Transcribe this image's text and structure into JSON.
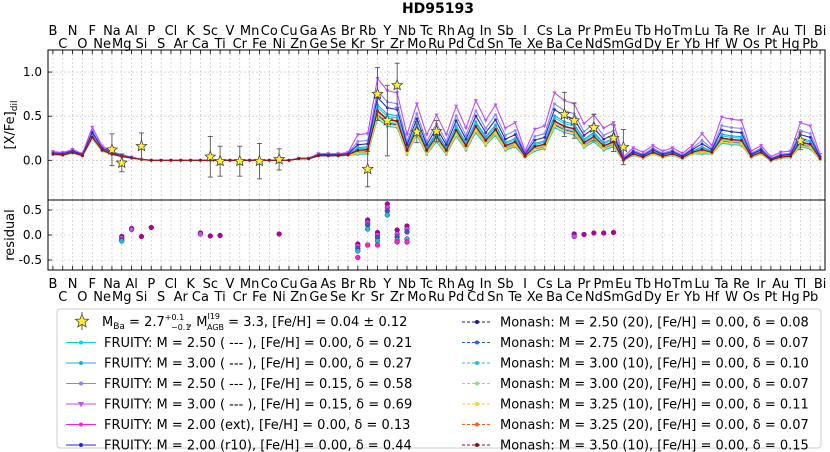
{
  "chart_data": {
    "type": "line",
    "title": "HD95193",
    "top_panel": {
      "ylabel_main": "[X/Fe]",
      "ylabel_sub": "dil",
      "ylim": [
        -0.45,
        1.25
      ],
      "yticks": [
        "0.0",
        "0.5",
        "1.0"
      ],
      "grid": true
    },
    "bottom_panel": {
      "ylabel": "residual",
      "ylim": [
        -0.7,
        0.7
      ],
      "yticks": [
        "-0.5",
        "0.0",
        "0.5"
      ],
      "grid": true
    },
    "x_elements": [
      "B",
      "C",
      "N",
      "O",
      "F",
      "Ne",
      "Na",
      "Mg",
      "Al",
      "Si",
      "P",
      "S",
      "Cl",
      "Ar",
      "K",
      "Ca",
      "Sc",
      "Ti",
      "V",
      "Cr",
      "Mn",
      "Fe",
      "Co",
      "Ni",
      "Cu",
      "Zn",
      "Ga",
      "Ge",
      "As",
      "Se",
      "Br",
      "Kr",
      "Rb",
      "Sr",
      "Y",
      "Zr",
      "Nb",
      "Mo",
      "Tc",
      "Ru",
      "Rh",
      "Pd",
      "Ag",
      "Cd",
      "In",
      "Sn",
      "Sb",
      "Te",
      "I",
      "Xe",
      "Cs",
      "Ba",
      "La",
      "Ce",
      "Pr",
      "Nd",
      "Pm",
      "Sm",
      "Eu",
      "Gd",
      "Tb",
      "Dy",
      "Ho",
      "Er",
      "Tm",
      "Yb",
      "Lu",
      "Hf",
      "Ta",
      "W",
      "Re",
      "Os",
      "Ir",
      "Pt",
      "Au",
      "Hg",
      "Tl",
      "Pb",
      "Bi"
    ],
    "observed": {
      "points": [
        {
          "el": "Na",
          "y": 0.12,
          "err": 0.18
        },
        {
          "el": "Mg",
          "y": -0.03,
          "err": 0.1
        },
        {
          "el": "Si",
          "y": 0.16,
          "err": 0.15
        },
        {
          "el": "Sc",
          "y": 0.04,
          "err": 0.23
        },
        {
          "el": "Ti",
          "y": -0.01,
          "err": 0.17
        },
        {
          "el": "Fe",
          "y": -0.01,
          "err": 0.2
        },
        {
          "el": "Cr",
          "y": -0.01,
          "err": 0.17
        },
        {
          "el": "Ni",
          "y": 0.01,
          "err": 0.12
        },
        {
          "el": "Rb",
          "y": -0.1,
          "err": 0.2
        },
        {
          "el": "Sr",
          "y": 0.75,
          "err": 0.3
        },
        {
          "el": "Y",
          "y": 0.45,
          "err": 0.4
        },
        {
          "el": "Zr",
          "y": 0.85,
          "err": 0.25
        },
        {
          "el": "Mo",
          "y": 0.32,
          "err": 0.12
        },
        {
          "el": "Ru",
          "y": 0.33,
          "err": 0.12
        },
        {
          "el": "La",
          "y": 0.52,
          "err": 0.25
        },
        {
          "el": "Ce",
          "y": 0.45,
          "err": 0.2
        },
        {
          "el": "Nd",
          "y": 0.37,
          "err": 0.15
        },
        {
          "el": "Sm",
          "y": 0.25,
          "err": 0.15
        },
        {
          "el": "Eu",
          "y": 0.15,
          "err": 0.2
        },
        {
          "el": "Tl",
          "y": 0.22,
          "err": 0.1
        }
      ]
    },
    "residuals": [
      {
        "el": "Mg",
        "values": [
          -0.03,
          -0.06,
          -0.1,
          -0.12
        ]
      },
      {
        "el": "Al",
        "values": [
          0.13,
          0.11
        ]
      },
      {
        "el": "Si",
        "values": [
          -0.03
        ]
      },
      {
        "el": "P",
        "values": [
          0.15
        ]
      },
      {
        "el": "Ca",
        "values": [
          0.04,
          0.02
        ]
      },
      {
        "el": "Sc",
        "values": [
          -0.02
        ]
      },
      {
        "el": "Ti",
        "values": [
          -0.01
        ]
      },
      {
        "el": "Ni",
        "values": [
          0.02
        ]
      },
      {
        "el": "Kr",
        "values": [
          -0.18,
          -0.22,
          -0.27,
          -0.32,
          -0.45
        ]
      },
      {
        "el": "Rb",
        "values": [
          0.3,
          0.25,
          0.2,
          0.12,
          -0.2
        ]
      },
      {
        "el": "Sr",
        "values": [
          0.05,
          0.0,
          -0.05,
          -0.12,
          -0.2
        ]
      },
      {
        "el": "Y",
        "values": [
          0.62,
          0.55,
          0.48,
          0.4
        ]
      },
      {
        "el": "Zr",
        "values": [
          0.1,
          0.02,
          -0.04,
          -0.1,
          -0.14
        ]
      },
      {
        "el": "Nb",
        "values": [
          0.18,
          0.12,
          0.06,
          -0.08,
          -0.14
        ]
      },
      {
        "el": "Ce",
        "values": [
          0.02,
          -0.03
        ]
      },
      {
        "el": "Pr",
        "values": [
          0.01
        ]
      },
      {
        "el": "Nd",
        "values": [
          0.04
        ]
      },
      {
        "el": "Sm",
        "values": [
          0.05
        ]
      },
      {
        "el": "Pm",
        "values": [
          0.04
        ]
      }
    ],
    "series": [
      {
        "name": "FRUITY:    M = 2.50 ( --- ),  [Fe/H] =  0.00,  δ = 0.21",
        "color": "#00d7ea",
        "marker": "dot",
        "s": 0.92,
        "v": 0.02
      },
      {
        "name": "FRUITY:    M = 3.00 ( --- ),  [Fe/H] =  0.00,  δ = 0.27",
        "color": "#22a8e6",
        "marker": "dot",
        "s": 0.95,
        "v": 0.03
      },
      {
        "name": "FRUITY:    M = 2.50 ( --- ),  [Fe/H] =  0.15,  δ = 0.58",
        "color": "#8484ff",
        "marker": "dot",
        "s": 1.12,
        "v": 0.08
      },
      {
        "name": "FRUITY:    M = 3.00 ( --- ),  [Fe/H] =  0.15,  δ = 0.69",
        "color": "#c04cff",
        "marker": "tri",
        "s": 1.25,
        "v": 0.14
      },
      {
        "name": "FRUITY:    M = 2.00 (ext),  [Fe/H] =  0.00,  δ = 0.13",
        "color": "#ff22cc",
        "marker": "dot",
        "s": 0.88,
        "v": 0.0
      },
      {
        "name": "FRUITY:    M = 2.00 (r10),  [Fe/H] =  0.00,  δ = 0.44",
        "color": "#2828c8",
        "marker": "dot",
        "s": 1.05,
        "v": 0.05
      },
      {
        "name": "Monash:  M = 2.50 (20),   [Fe/H] =  0.00,  δ = 0.08",
        "color": "#1a1a8a",
        "marker": "dot",
        "s": 0.84,
        "v": -0.02
      },
      {
        "name": "Monash:  M = 2.75 (20),   [Fe/H] =  0.00,  δ = 0.07",
        "color": "#2a62c8",
        "marker": "dot",
        "s": 0.85,
        "v": -0.02
      },
      {
        "name": "Monash:  M = 3.00 (10),   [Fe/H] =  0.00,  δ = 0.10",
        "color": "#22bcd8",
        "marker": "dot",
        "s": 0.8,
        "v": -0.03
      },
      {
        "name": "Monash:  M = 3.00 (20),   [Fe/H] =  0.00,  δ = 0.07",
        "color": "#8ee070",
        "marker": "dot",
        "s": 0.86,
        "v": -0.01
      },
      {
        "name": "Monash:  M = 3.25 (10),   [Fe/H] =  0.00,  δ = 0.11",
        "color": "#ffd21c",
        "marker": "dot",
        "s": 0.82,
        "v": -0.02
      },
      {
        "name": "Monash:  M = 3.25 (20),   [Fe/H] =  0.00,  δ = 0.07",
        "color": "#ff5a18",
        "marker": "dot",
        "s": 0.9,
        "v": 0.0
      },
      {
        "name": "Monash:  M = 3.50 (10),   [Fe/H] =  0.00,  δ = 0.15",
        "color": "#8a1020",
        "marker": "dot",
        "s": 0.87,
        "v": 0.01
      }
    ],
    "base_profile": [
      0.08,
      0.07,
      0.1,
      0.06,
      0.3,
      0.13,
      0.08,
      0.05,
      0.03,
      0.01,
      0.0,
      0.0,
      0.0,
      0.0,
      0.0,
      0.0,
      0.0,
      0.0,
      0.0,
      0.0,
      0.0,
      0.0,
      0.0,
      0.0,
      0.0,
      0.02,
      0.02,
      0.06,
      0.06,
      0.06,
      0.07,
      0.12,
      0.13,
      0.63,
      0.52,
      0.5,
      0.12,
      0.4,
      0.12,
      0.3,
      0.12,
      0.38,
      0.18,
      0.43,
      0.25,
      0.39,
      0.18,
      0.23,
      0.05,
      0.17,
      0.2,
      0.5,
      0.43,
      0.4,
      0.22,
      0.3,
      0.18,
      0.23,
      0.0,
      0.08,
      0.04,
      0.1,
      0.05,
      0.08,
      0.03,
      0.1,
      0.13,
      0.1,
      0.28,
      0.26,
      0.25,
      0.05,
      0.1,
      0.0,
      0.04,
      0.05,
      0.23,
      0.2,
      0.02
    ],
    "legend": {
      "observed_label": "M_Ba = 2.7 (+0.1 / -0.1), M_AGB (I19) = 3.3, [Fe/H] = 0.04 ± 0.12",
      "obs_pre": "M",
      "obs_sub_ba": "Ba",
      "obs_val": " = 2.7",
      "obs_err_up": "+0.1",
      "obs_err_dn": "−0.1",
      "obs_mid": ", M",
      "obs_sup_i19": "I19",
      "obs_sub_agb": "AGB",
      "obs_tail": " = 3.3, [Fe/H] = 0.04 ± 0.12"
    }
  }
}
